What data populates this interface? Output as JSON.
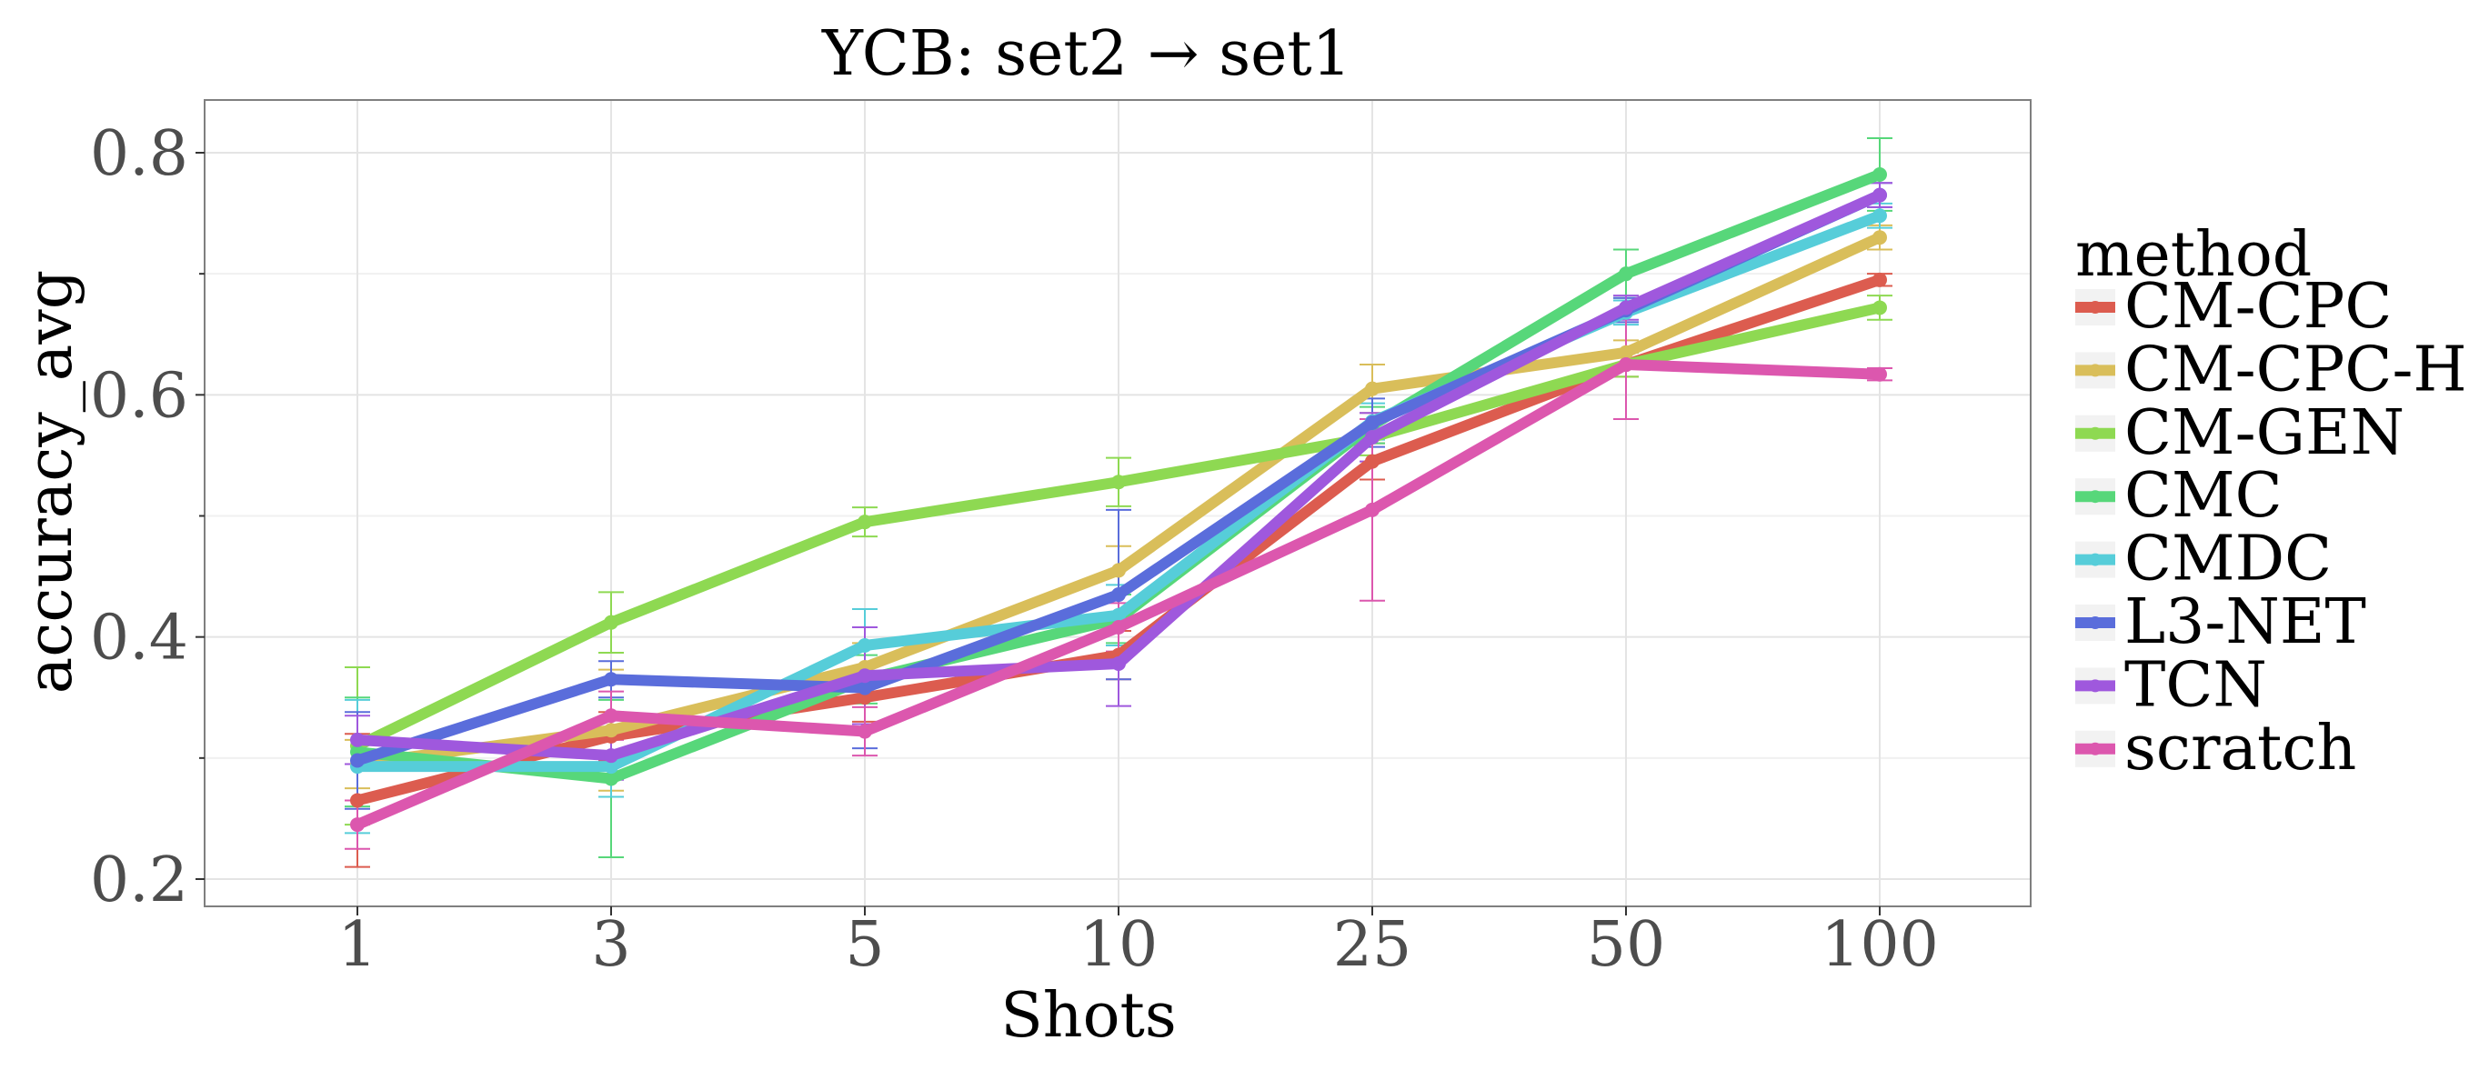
{
  "chart_data": {
    "type": "line",
    "title": "YCB: set2 → set1",
    "xlabel": "Shots",
    "ylabel": "accuracy_avg",
    "categories": [
      "1",
      "3",
      "5",
      "10",
      "25",
      "50",
      "100"
    ],
    "ylim": [
      0.18,
      0.845
    ],
    "yticks": [
      0.2,
      0.4,
      0.6,
      0.8
    ],
    "ytick_labels": [
      "0.2",
      "0.4",
      "0.6",
      "0.8"
    ],
    "grid": true,
    "legend_title": "method",
    "legend_position": "right",
    "series": [
      {
        "name": "CM-CPC",
        "color": "#DC5C4F",
        "values": [
          0.265,
          0.318,
          0.35,
          0.385,
          0.545,
          0.625,
          0.695
        ],
        "errors": [
          0.055,
          0.02,
          0.02,
          0.02,
          0.015,
          0.01,
          0.005
        ]
      },
      {
        "name": "CM-CPC-H",
        "color": "#D9BE5A",
        "values": [
          0.295,
          0.323,
          0.375,
          0.455,
          0.605,
          0.635,
          0.73
        ],
        "errors": [
          0.02,
          0.05,
          0.02,
          0.02,
          0.02,
          0.01,
          0.01
        ]
      },
      {
        "name": "CM-GEN",
        "color": "#8ED952",
        "values": [
          0.31,
          0.412,
          0.495,
          0.528,
          0.565,
          0.625,
          0.672
        ],
        "errors": [
          0.065,
          0.025,
          0.012,
          0.02,
          0.015,
          0.01,
          0.01
        ]
      },
      {
        "name": "CMC",
        "color": "#57D77A",
        "values": [
          0.305,
          0.283,
          0.365,
          0.415,
          0.575,
          0.7,
          0.782
        ],
        "errors": [
          0.045,
          0.065,
          0.02,
          0.02,
          0.015,
          0.02,
          0.03
        ]
      },
      {
        "name": "CMDC",
        "color": "#56CDD9",
        "values": [
          0.293,
          0.293,
          0.393,
          0.418,
          0.578,
          0.668,
          0.748
        ],
        "errors": [
          0.055,
          0.025,
          0.03,
          0.025,
          0.015,
          0.01,
          0.01
        ]
      },
      {
        "name": "L3-NET",
        "color": "#5A6DDB",
        "values": [
          0.298,
          0.365,
          0.358,
          0.435,
          0.577,
          0.67,
          0.765
        ],
        "errors": [
          0.04,
          0.015,
          0.05,
          0.07,
          0.02,
          0.01,
          0.01
        ]
      },
      {
        "name": "TCN",
        "color": "#9F58DD",
        "values": [
          0.315,
          0.302,
          0.368,
          0.378,
          0.565,
          0.672,
          0.765
        ],
        "errors": [
          0.02,
          0.02,
          0.04,
          0.035,
          0.02,
          0.01,
          0.01
        ]
      },
      {
        "name": "scratch",
        "color": "#DC57AE",
        "values": [
          0.245,
          0.335,
          0.322,
          0.408,
          0.505,
          0.625,
          0.617
        ],
        "errors": [
          0.02,
          0.02,
          0.02,
          0.02,
          0.075,
          0.045,
          0.005
        ]
      }
    ]
  }
}
